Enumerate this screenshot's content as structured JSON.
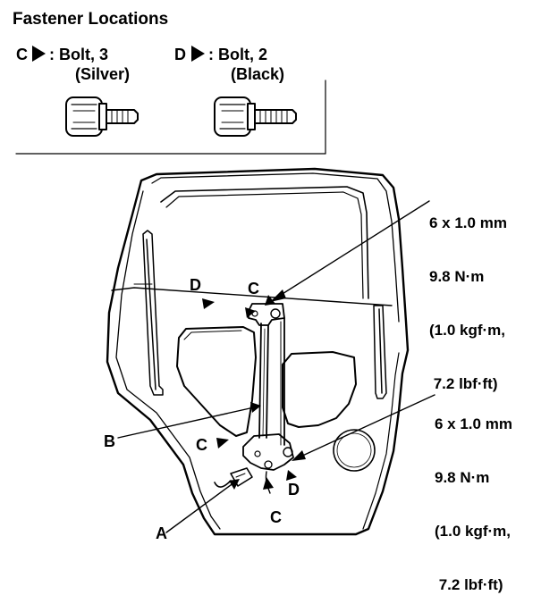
{
  "title": "Fastener Locations",
  "legend": {
    "c": {
      "letter": "C",
      "desc": ": Bolt, 3",
      "color_note": "(Silver)"
    },
    "d": {
      "letter": "D",
      "desc": ": Bolt, 2",
      "color_note": "(Black)"
    }
  },
  "specs": {
    "upper": {
      "size": "6 x 1.0 mm",
      "torque_nm": "9.8 N·m",
      "torque_kgf": "(1.0 kgf·m,",
      "torque_lbf": " 7.2 lbf·ft)"
    },
    "lower": {
      "size": "6 x 1.0 mm",
      "torque_nm": "9.8 N·m",
      "torque_kgf": "(1.0 kgf·m,",
      "torque_lbf": " 7.2 lbf·ft)"
    }
  },
  "callouts": {
    "d_upper": "D",
    "c_upper": "C",
    "b": "B",
    "c_mid": "C",
    "d_lower": "D",
    "c_lower": "C",
    "a": "A"
  }
}
